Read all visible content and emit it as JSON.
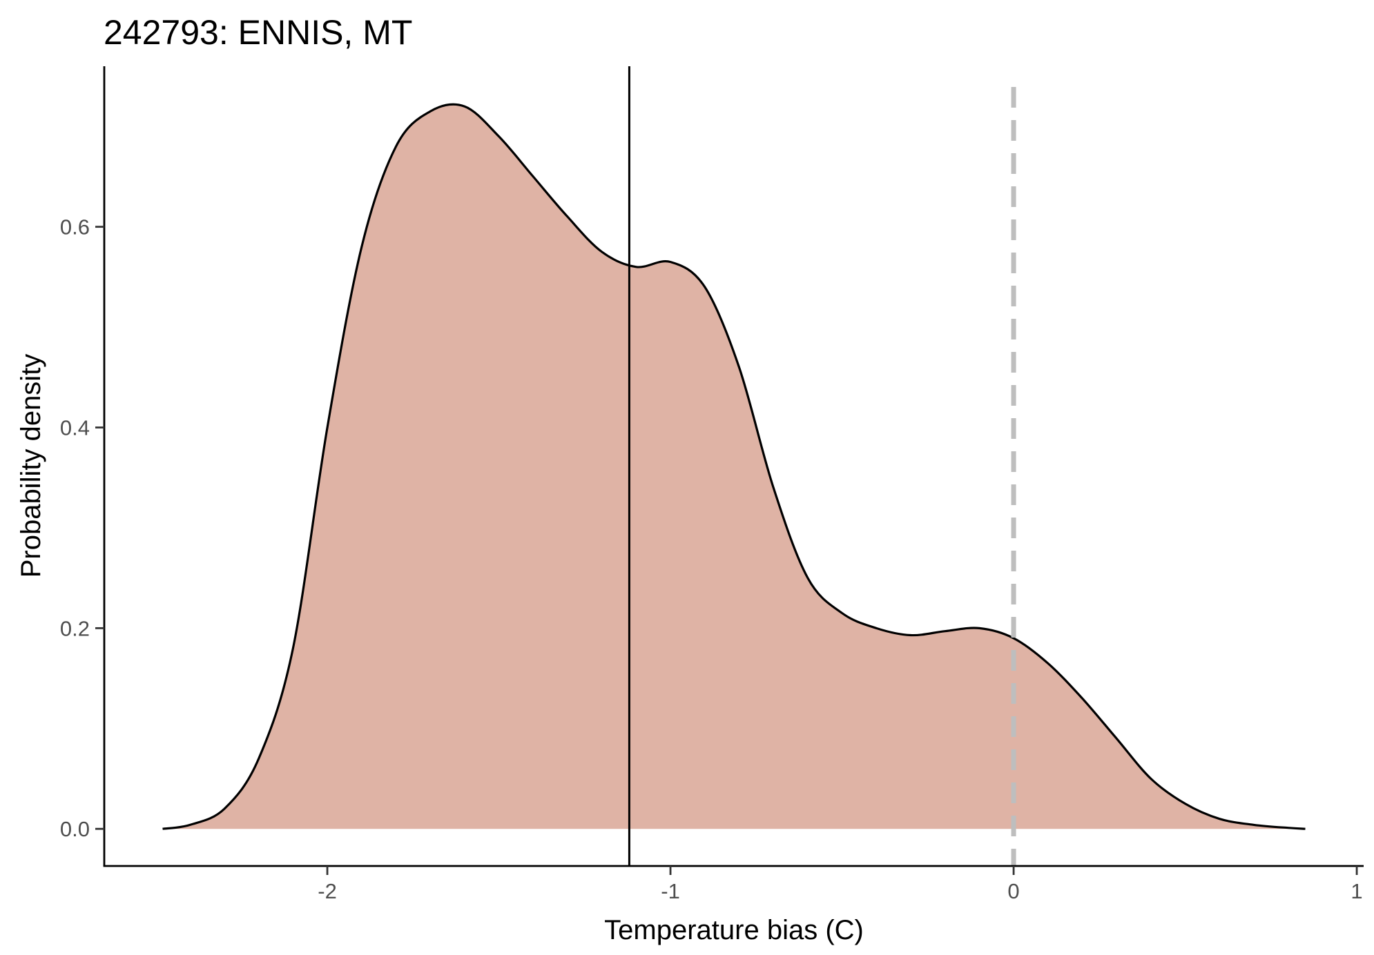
{
  "chart_data": {
    "type": "area",
    "title": "242793: ENNIS, MT",
    "xlabel": "Temperature bias (C)",
    "ylabel": "Probability density",
    "xlim": [
      -2.65,
      1.02
    ],
    "ylim": [
      -0.037,
      0.76
    ],
    "xticks": [
      -2,
      -1,
      0,
      1
    ],
    "xtick_labels": [
      "-2",
      "-1",
      "0",
      "1"
    ],
    "yticks": [
      0.0,
      0.2,
      0.4,
      0.6
    ],
    "ytick_labels": [
      "0.0",
      "0.2",
      "0.4",
      "0.6"
    ],
    "grid": false,
    "fill_color": "#dfb3a5",
    "line_color": "#000000",
    "reference_line_color": "#bebebe",
    "mean_line_x": -1.12,
    "reference_line_x": 0,
    "series": [
      {
        "x": [
          -2.48,
          -2.4,
          -2.3,
          -2.2,
          -2.1,
          -2.0,
          -1.9,
          -1.8,
          -1.7,
          -1.6,
          -1.5,
          -1.4,
          -1.3,
          -1.2,
          -1.1,
          -1.0,
          -0.9,
          -0.8,
          -0.7,
          -0.6,
          -0.5,
          -0.4,
          -0.3,
          -0.2,
          -0.1,
          0.0,
          0.1,
          0.2,
          0.3,
          0.4,
          0.5,
          0.6,
          0.7,
          0.8,
          0.85
        ],
        "y": [
          0.0,
          0.004,
          0.02,
          0.07,
          0.18,
          0.4,
          0.58,
          0.68,
          0.715,
          0.72,
          0.69,
          0.65,
          0.61,
          0.575,
          0.56,
          0.565,
          0.54,
          0.46,
          0.34,
          0.25,
          0.215,
          0.2,
          0.193,
          0.197,
          0.2,
          0.19,
          0.165,
          0.13,
          0.09,
          0.05,
          0.025,
          0.01,
          0.004,
          0.001,
          0.0
        ]
      }
    ]
  }
}
